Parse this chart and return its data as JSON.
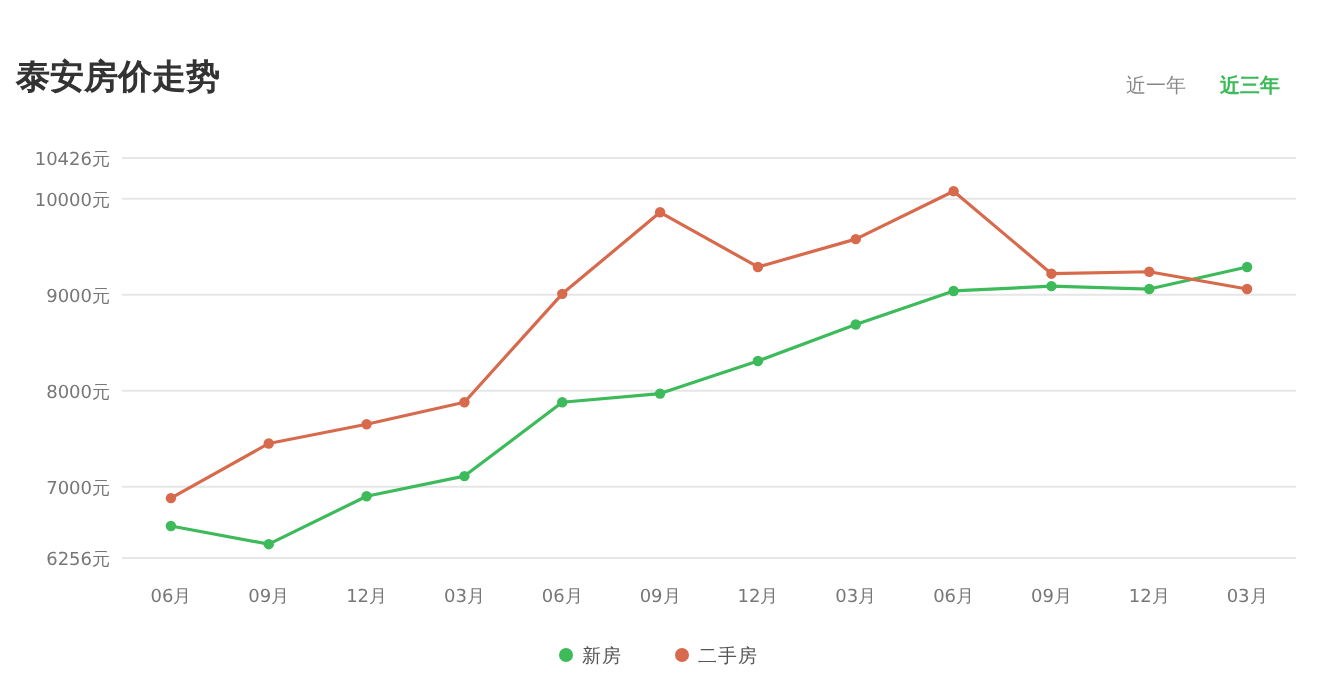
{
  "chart_data": {
    "type": "line",
    "title": "泰安房价走势",
    "annotations": [
      "近一年",
      "近三年"
    ],
    "categories": [
      "06月",
      "09月",
      "12月",
      "03月",
      "06月",
      "09月",
      "12月",
      "03月",
      "06月",
      "09月",
      "12月",
      "03月"
    ],
    "series": [
      {
        "name": "新房",
        "color": "#3dba5a",
        "values": [
          6590,
          6400,
          6900,
          7110,
          7880,
          7970,
          8310,
          8690,
          9040,
          9090,
          9060,
          9290
        ]
      },
      {
        "name": "二手房",
        "color": "#d76a4c",
        "values": [
          6880,
          7450,
          7650,
          7880,
          9010,
          9860,
          9290,
          9580,
          10080,
          9220,
          9240,
          9060
        ]
      }
    ],
    "ylim": [
      6256,
      10426
    ],
    "yticks": [
      {
        "value": 6256,
        "label": "6256元"
      },
      {
        "value": 7000,
        "label": "7000元"
      },
      {
        "value": 8000,
        "label": "8000元"
      },
      {
        "value": 9000,
        "label": "9000元"
      },
      {
        "value": 10000,
        "label": "10000元"
      },
      {
        "value": 10426,
        "label": "10426元"
      }
    ],
    "grid": "y",
    "legend": "bottom",
    "marker": "circle",
    "line_style": "solid"
  }
}
